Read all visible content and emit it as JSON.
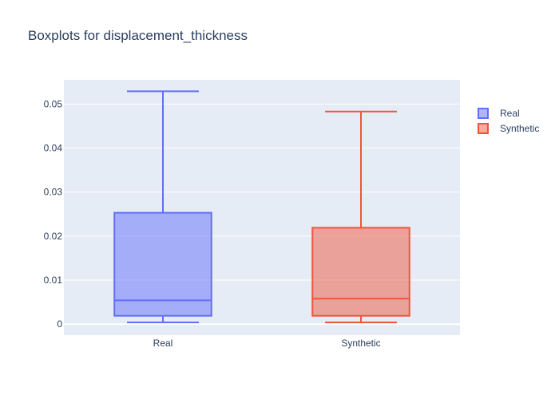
{
  "chart_data": {
    "type": "box",
    "title": "Boxplots for displacement_thickness",
    "xlabel": "",
    "ylabel": "",
    "categories": [
      "Real",
      "Synthetic"
    ],
    "ylim": [
      -0.0025,
      0.0555
    ],
    "yticks": [
      0,
      0.01,
      0.02,
      0.03,
      0.04,
      0.05
    ],
    "ytick_labels": [
      "0",
      "0.01",
      "0.02",
      "0.03",
      "0.04",
      "0.05"
    ],
    "grid": true,
    "legend_position": "top-right",
    "series": [
      {
        "name": "Real",
        "color": "#636efa",
        "fill": "rgba(99,110,250,0.5)",
        "min": 0.0004,
        "q1": 0.0019,
        "median": 0.0054,
        "q3": 0.0253,
        "max": 0.0529
      },
      {
        "name": "Synthetic",
        "color": "#ef553b",
        "fill": "rgba(239,85,59,0.5)",
        "min": 0.0004,
        "q1": 0.0019,
        "median": 0.0058,
        "q3": 0.0219,
        "max": 0.0483
      }
    ]
  }
}
